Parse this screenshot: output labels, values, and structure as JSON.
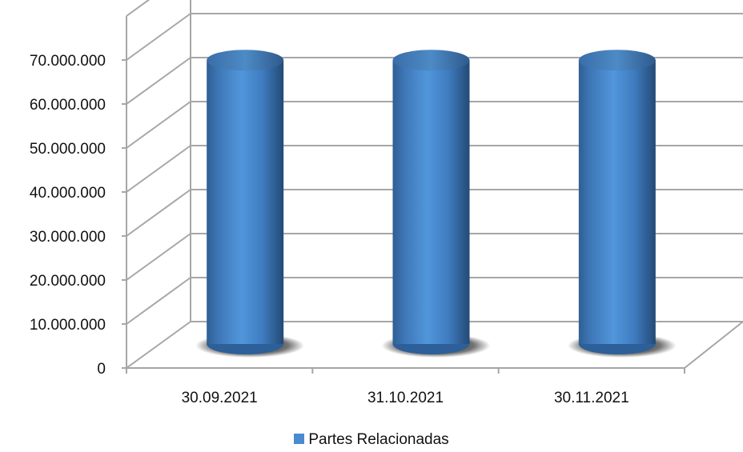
{
  "chart_data": {
    "type": "bar",
    "style": "3d-cylinder",
    "categories": [
      "30.09.2021",
      "31.10.2021",
      "30.11.2021"
    ],
    "series": [
      {
        "name": "Partes Relacionadas",
        "values": [
          64500000,
          64500000,
          64500000
        ],
        "color": "#4A8AD0"
      }
    ],
    "y_tick_labels": [
      "0",
      "10.000.000",
      "20.000.000",
      "30.000.000",
      "40.000.000",
      "50.000.000",
      "60.000.000",
      "70.000.000"
    ],
    "ylim": [
      0,
      70000000
    ],
    "y_step": 10000000,
    "grid": true,
    "legend_position": "bottom"
  }
}
